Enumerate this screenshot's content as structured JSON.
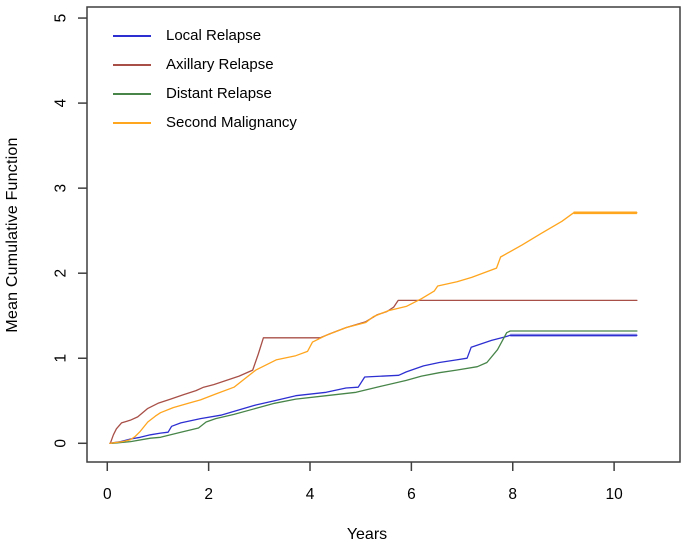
{
  "figure": {
    "background_color": "#ffffff",
    "axis_color": "#3f3f3f",
    "text_color": "#000000"
  },
  "chart_data": {
    "type": "line",
    "subtype": "mean-cumulative-function-step-curves",
    "title": "",
    "xlabel": "Years",
    "ylabel": "Mean Cumulative Function",
    "xlim": [
      -0.4,
      11.3
    ],
    "ylim": [
      -0.22,
      5.13
    ],
    "x_ticks": [
      0,
      2,
      4,
      6,
      8,
      10
    ],
    "y_ticks": [
      0,
      1,
      2,
      3,
      4,
      5
    ],
    "grid": false,
    "legend_position": "top-left",
    "series": [
      {
        "name": "Local Relapse",
        "color": "#2d2fd1",
        "points": [
          [
            0.05,
            0
          ],
          [
            0.26,
            0.02
          ],
          [
            0.46,
            0.05
          ],
          [
            0.65,
            0.07
          ],
          [
            0.85,
            0.1
          ],
          [
            1.05,
            0.12
          ],
          [
            1.2,
            0.13
          ],
          [
            1.27,
            0.2
          ],
          [
            1.45,
            0.24
          ],
          [
            1.84,
            0.29
          ],
          [
            2.24,
            0.33
          ],
          [
            2.93,
            0.45
          ],
          [
            3.3,
            0.5
          ],
          [
            3.72,
            0.56
          ],
          [
            4.32,
            0.6
          ],
          [
            4.71,
            0.65
          ],
          [
            4.95,
            0.66
          ],
          [
            5.08,
            0.78
          ],
          [
            5.75,
            0.8
          ],
          [
            5.9,
            0.84
          ],
          [
            6.24,
            0.91
          ],
          [
            6.55,
            0.95
          ],
          [
            6.89,
            0.98
          ],
          [
            7.1,
            1.0
          ],
          [
            7.18,
            1.13
          ],
          [
            7.58,
            1.21
          ],
          [
            7.84,
            1.25
          ],
          [
            7.95,
            1.27
          ],
          [
            10.45,
            1.27
          ]
        ],
        "tail": {
          "from": 7.95,
          "width": 3.4,
          "opacity": 0.38
        }
      },
      {
        "name": "Axillary Relapse",
        "color": "#a85048",
        "points": [
          [
            0.06,
            0
          ],
          [
            0.12,
            0.1
          ],
          [
            0.18,
            0.17
          ],
          [
            0.28,
            0.24
          ],
          [
            0.45,
            0.27
          ],
          [
            0.6,
            0.31
          ],
          [
            0.8,
            0.41
          ],
          [
            1.0,
            0.47
          ],
          [
            1.25,
            0.52
          ],
          [
            1.5,
            0.57
          ],
          [
            1.75,
            0.62
          ],
          [
            1.9,
            0.66
          ],
          [
            2.1,
            0.69
          ],
          [
            2.35,
            0.74
          ],
          [
            2.6,
            0.79
          ],
          [
            2.87,
            0.86
          ],
          [
            2.98,
            1.05
          ],
          [
            3.08,
            1.24
          ],
          [
            4.2,
            1.24
          ],
          [
            4.4,
            1.29
          ],
          [
            4.71,
            1.36
          ],
          [
            5.1,
            1.43
          ],
          [
            5.32,
            1.51
          ],
          [
            5.52,
            1.55
          ],
          [
            5.65,
            1.6
          ],
          [
            5.74,
            1.68
          ],
          [
            10.45,
            1.68
          ]
        ]
      },
      {
        "name": "Distant Relapse",
        "color": "#478549",
        "points": [
          [
            0.1,
            0
          ],
          [
            0.46,
            0.02
          ],
          [
            0.85,
            0.06
          ],
          [
            1.05,
            0.07
          ],
          [
            1.45,
            0.13
          ],
          [
            1.8,
            0.18
          ],
          [
            1.95,
            0.25
          ],
          [
            2.14,
            0.29
          ],
          [
            2.5,
            0.34
          ],
          [
            2.93,
            0.41
          ],
          [
            3.3,
            0.47
          ],
          [
            3.72,
            0.52
          ],
          [
            4.32,
            0.56
          ],
          [
            4.91,
            0.6
          ],
          [
            5.4,
            0.67
          ],
          [
            5.9,
            0.74
          ],
          [
            6.2,
            0.79
          ],
          [
            6.55,
            0.83
          ],
          [
            6.89,
            0.86
          ],
          [
            7.3,
            0.9
          ],
          [
            7.49,
            0.95
          ],
          [
            7.7,
            1.1
          ],
          [
            7.88,
            1.3
          ],
          [
            7.95,
            1.32
          ],
          [
            10.45,
            1.32
          ]
        ]
      },
      {
        "name": "Second Malignancy",
        "color": "#ffa51e",
        "points": [
          [
            0.05,
            0
          ],
          [
            0.3,
            0.02
          ],
          [
            0.45,
            0.04
          ],
          [
            0.55,
            0.08
          ],
          [
            0.65,
            0.14
          ],
          [
            0.8,
            0.25
          ],
          [
            0.95,
            0.32
          ],
          [
            1.05,
            0.36
          ],
          [
            1.3,
            0.42
          ],
          [
            1.6,
            0.47
          ],
          [
            1.84,
            0.51
          ],
          [
            2.14,
            0.58
          ],
          [
            2.5,
            0.66
          ],
          [
            2.93,
            0.86
          ],
          [
            3.33,
            0.98
          ],
          [
            3.72,
            1.03
          ],
          [
            3.95,
            1.08
          ],
          [
            4.05,
            1.19
          ],
          [
            4.32,
            1.27
          ],
          [
            4.71,
            1.36
          ],
          [
            5.1,
            1.42
          ],
          [
            5.25,
            1.49
          ],
          [
            5.55,
            1.56
          ],
          [
            5.9,
            1.61
          ],
          [
            6.2,
            1.7
          ],
          [
            6.45,
            1.79
          ],
          [
            6.52,
            1.85
          ],
          [
            6.9,
            1.9
          ],
          [
            7.19,
            1.95
          ],
          [
            7.68,
            2.06
          ],
          [
            7.76,
            2.19
          ],
          [
            8.18,
            2.33
          ],
          [
            8.57,
            2.47
          ],
          [
            8.97,
            2.61
          ],
          [
            9.2,
            2.71
          ],
          [
            10.45,
            2.71
          ]
        ],
        "tail": {
          "from": 9.2,
          "width": 2.6,
          "opacity": 1
        }
      }
    ]
  }
}
